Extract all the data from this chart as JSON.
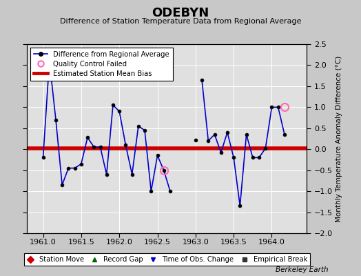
{
  "title": "ODEBYN",
  "subtitle": "Difference of Station Temperature Data from Regional Average",
  "ylabel": "Monthly Temperature Anomaly Difference (°C)",
  "xlabel_credit": "Berkeley Earth",
  "xlim": [
    1960.79,
    1964.46
  ],
  "ylim": [
    -2.0,
    2.5
  ],
  "yticks": [
    -2.0,
    -1.5,
    -1.0,
    -0.5,
    0.0,
    0.5,
    1.0,
    1.5,
    2.0,
    2.5
  ],
  "xticks": [
    1961.0,
    1961.5,
    1962.0,
    1962.5,
    1963.0,
    1963.5,
    1964.0
  ],
  "background_color": "#c8c8c8",
  "plot_bg_color": "#e0e0e0",
  "bias_value": 0.02,
  "bias_color": "#cc0000",
  "line_color": "#0000cc",
  "line_data": {
    "x": [
      1961.0,
      1961.083,
      1961.167,
      1961.25,
      1961.333,
      1961.417,
      1961.5,
      1961.583,
      1961.667,
      1961.75,
      1961.833,
      1961.917,
      1962.0,
      1962.083,
      1962.167,
      1962.25,
      1962.333,
      1962.417,
      1962.5,
      1962.583,
      1962.667,
      1963.083,
      1963.167,
      1963.25,
      1963.333,
      1963.417,
      1963.5,
      1963.583,
      1963.667,
      1963.75,
      1963.833,
      1963.917,
      1964.0,
      1964.083,
      1964.167
    ],
    "y": [
      -0.2,
      2.1,
      0.7,
      -0.85,
      -0.45,
      -0.45,
      -0.35,
      0.28,
      0.05,
      0.05,
      -0.6,
      1.05,
      0.9,
      0.1,
      -0.6,
      0.55,
      0.45,
      -1.0,
      -0.15,
      -0.5,
      -1.0,
      1.65,
      0.2,
      0.35,
      -0.08,
      0.4,
      -0.2,
      -1.35,
      0.35,
      -0.2,
      -0.2,
      0.02,
      1.0,
      1.0,
      0.35
    ]
  },
  "qc_points": {
    "x": [
      1962.583,
      1964.167
    ],
    "y": [
      -0.5,
      1.0
    ]
  },
  "isolated_points": {
    "x": [
      1963.0
    ],
    "y": [
      0.22
    ]
  },
  "bottom_legend": [
    {
      "label": "Station Move",
      "marker": "D",
      "color": "#cc0000"
    },
    {
      "label": "Record Gap",
      "marker": "^",
      "color": "#006600"
    },
    {
      "label": "Time of Obs. Change",
      "marker": "v",
      "color": "#0000cc"
    },
    {
      "label": "Empirical Break",
      "marker": "s",
      "color": "#333333"
    }
  ]
}
